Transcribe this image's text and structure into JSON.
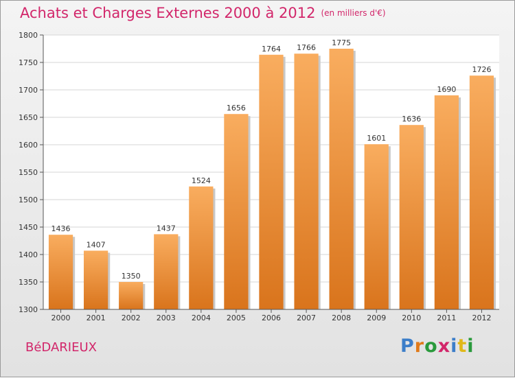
{
  "title": "Achats et Charges Externes 2000 à 2012",
  "subtitle": "(en milliers d'€)",
  "town": "BéDARIEUX",
  "logo": {
    "text": "Proxiti",
    "letter_colors": [
      "#3c7ec9",
      "#e07a1a",
      "#2a9a3c",
      "#d2266a",
      "#3c7ec9",
      "#e0b81a",
      "#2a9a3c"
    ]
  },
  "colors": {
    "title": "#d2266a",
    "bar_light": "#f9ad5f",
    "bar_dark": "#d9741c"
  },
  "chart_data": {
    "type": "bar",
    "categories": [
      "2000",
      "2001",
      "2002",
      "2003",
      "2004",
      "2005",
      "2006",
      "2007",
      "2008",
      "2009",
      "2010",
      "2011",
      "2012"
    ],
    "values": [
      1436,
      1407,
      1350,
      1437,
      1524,
      1656,
      1764,
      1766,
      1775,
      1601,
      1636,
      1690,
      1726
    ],
    "ylim": [
      1300,
      1800
    ],
    "yticks": [
      1300,
      1350,
      1400,
      1450,
      1500,
      1550,
      1600,
      1650,
      1700,
      1750,
      1800
    ],
    "grid": true,
    "data_labels": true
  }
}
